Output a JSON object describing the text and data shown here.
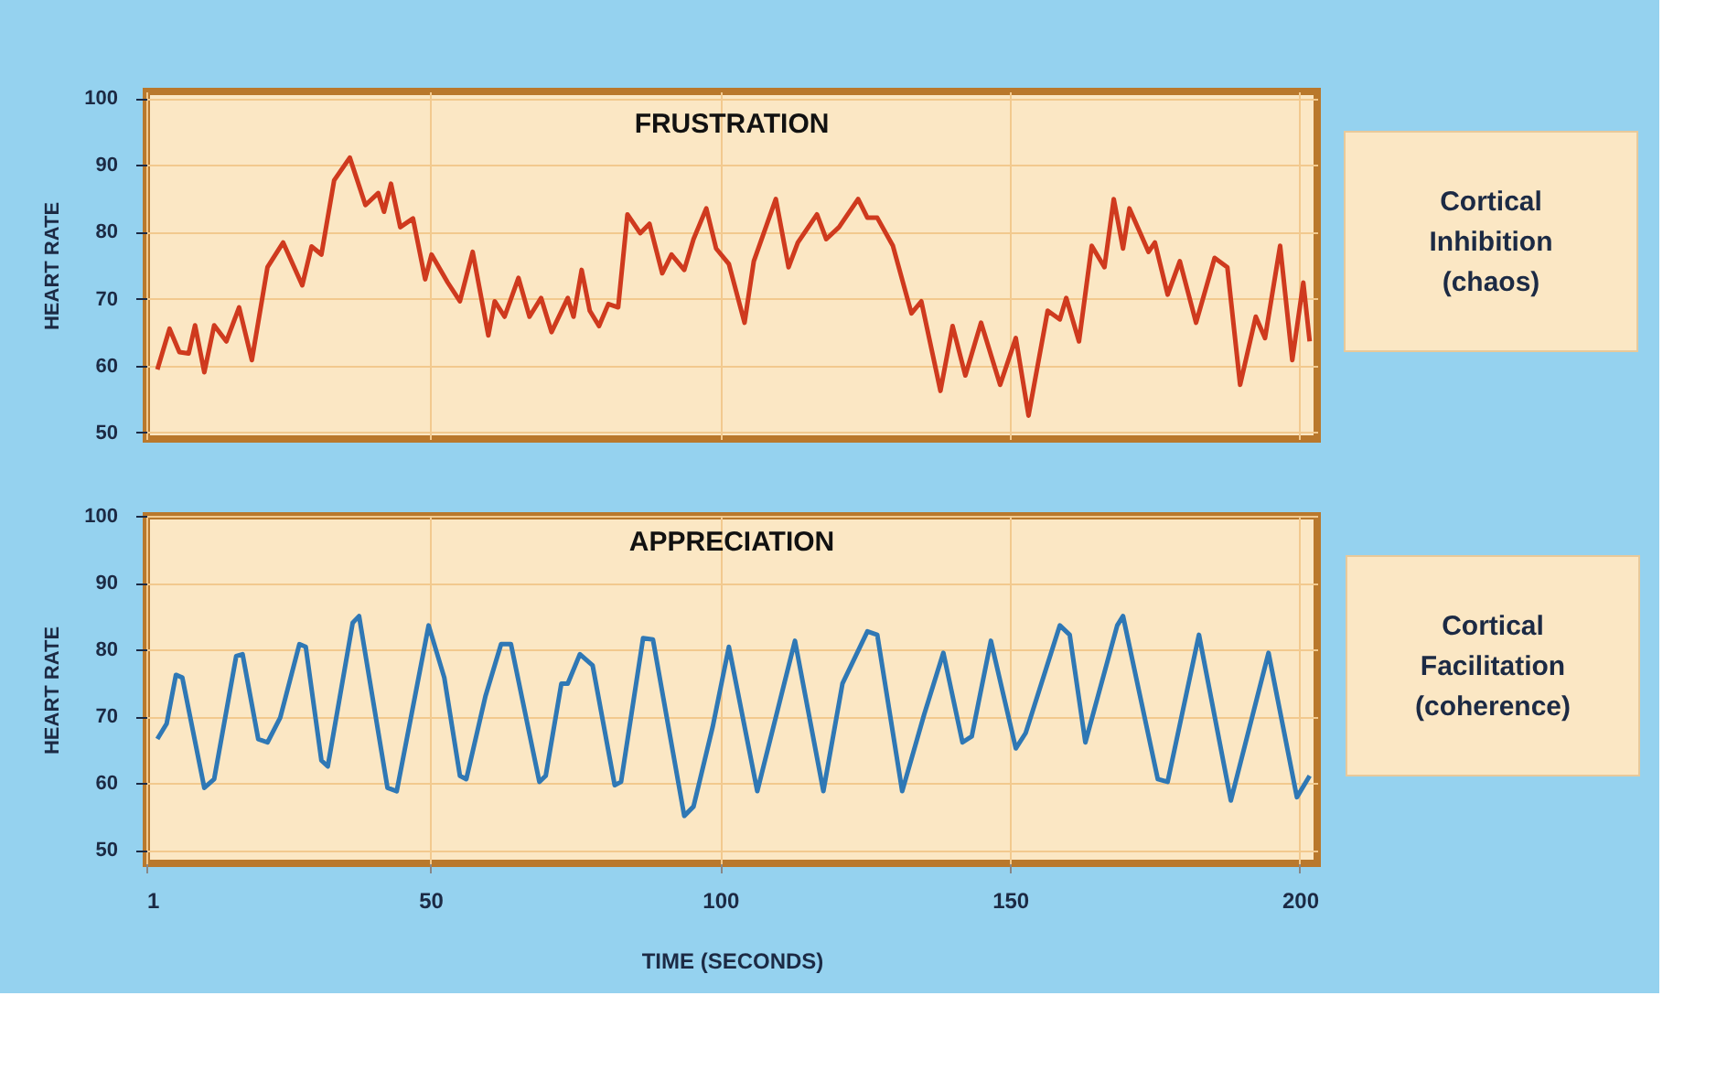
{
  "chart_data": [
    {
      "type": "line",
      "title": "FRUSTRATION",
      "ylabel": "HEART RATE",
      "xlim": [
        1,
        203
      ],
      "xticks": [
        1,
        50,
        100,
        150,
        200
      ],
      "ylim": [
        49,
        101
      ],
      "yticks": [
        50,
        60,
        70,
        80,
        90,
        100
      ],
      "grid": true,
      "tick_labels": "y",
      "x": [
        2.9,
        5,
        6.7,
        8.3,
        9.4,
        11,
        12.7,
        14.8,
        17,
        19.2,
        21.9,
        24.6,
        27.9,
        29.5,
        31.2,
        33.4,
        36.1,
        38.8,
        41,
        42,
        43.2,
        44.8,
        47,
        49.1,
        50.2,
        53,
        55.1,
        57.3,
        60,
        61.1,
        62.8,
        65.2,
        67.1,
        69.1,
        70.9,
        73.7,
        74.7,
        76.1,
        77.5,
        79.1,
        80.7,
        82.4,
        84,
        86.2,
        87.8,
        90,
        91.6,
        93.8,
        95.4,
        97.6,
        99.3,
        101.5,
        104.2,
        105.8,
        109.6,
        111.8,
        113.4,
        116.7,
        118.3,
        120.5,
        123.8,
        125.4,
        127.1,
        129.8,
        133,
        134.7,
        138,
        140.1,
        142.3,
        145,
        148.3,
        151,
        153.2,
        156.5,
        158.6,
        159.7,
        161.9,
        164.1,
        166.3,
        167.9,
        169.5,
        170.6,
        173.9,
        175,
        177.2,
        179.3,
        182.1,
        185.3,
        187.5,
        189.7,
        192.4,
        194,
        196.6,
        198.7,
        200.6,
        201.7
      ],
      "series": [
        {
          "color": "#cf3a1e",
          "values": [
            59.4,
            65.5,
            62,
            61.8,
            66,
            59,
            66,
            63.6,
            68.7,
            60.8,
            74.7,
            78.4,
            72,
            77.8,
            76.6,
            87.7,
            91.1,
            84,
            85.8,
            83,
            87.2,
            80.7,
            82,
            72.9,
            76.6,
            72.4,
            69.6,
            77,
            64.5,
            69.6,
            67.3,
            73.1,
            67.3,
            70.1,
            65,
            70.1,
            67.3,
            74.3,
            68.2,
            65.9,
            69.2,
            68.7,
            82.6,
            79.8,
            81.2,
            73.8,
            76.6,
            74.3,
            78.9,
            83.5,
            77.5,
            75.2,
            66.4,
            75.6,
            84.9,
            74.7,
            78.4,
            82.6,
            78.9,
            80.7,
            84.9,
            82.1,
            82.1,
            77.9,
            67.8,
            69.6,
            56.2,
            65.9,
            58.5,
            66.4,
            57.1,
            64.1,
            52.5,
            68.2,
            66.9,
            70.1,
            63.6,
            77.9,
            74.7,
            84.9,
            77.5,
            83.5,
            77,
            78.4,
            70.6,
            75.6,
            66.4,
            76.1,
            74.7,
            57.1,
            67.3,
            64.1,
            77.9,
            60.8,
            72.4,
            63.6
          ]
        }
      ]
    },
    {
      "type": "other",
      "annotations": [
        "Cortical Inhibition (chaos)"
      ]
    },
    {
      "type": "line",
      "title": "APPRECIATION",
      "xlabel": "TIME (SECONDS)",
      "ylabel": "HEART RATE",
      "xlim": [
        1,
        203
      ],
      "xticks": [
        1,
        50,
        100,
        150,
        200
      ],
      "ylim": [
        48,
        100
      ],
      "yticks": [
        50,
        60,
        70,
        80,
        90,
        100
      ],
      "grid": true,
      "x": [
        2.9,
        4.5,
        6.1,
        7.2,
        11,
        12.7,
        16.5,
        17.6,
        20.3,
        21.9,
        24.1,
        27.4,
        28.5,
        31.2,
        32.3,
        36.6,
        37.7,
        42.6,
        44.2,
        49.7,
        52.4,
        55.1,
        56.2,
        59.5,
        62.2,
        63.9,
        68.8,
        69.9,
        72.6,
        73.7,
        75.8,
        78,
        81.8,
        82.9,
        86.7,
        88.4,
        93.8,
        95.4,
        98.7,
        101.5,
        106.4,
        112.9,
        117.8,
        121.1,
        125.4,
        127.1,
        131.4,
        135.2,
        138.5,
        141.8,
        143.4,
        146.7,
        151,
        152.7,
        158.6,
        160.3,
        163,
        168.5,
        169.5,
        175.5,
        177.2,
        182.6,
        188.1,
        194.6,
        199.5,
        201.7
      ],
      "series": [
        {
          "color": "#2f78b5",
          "values": [
            66.6,
            68.9,
            76.2,
            75.8,
            59.3,
            60.6,
            79,
            79.3,
            66.6,
            66.1,
            69.8,
            80.8,
            80.4,
            63.4,
            62.5,
            84,
            85,
            59.3,
            58.8,
            83.6,
            75.8,
            61.1,
            60.6,
            73,
            80.8,
            80.8,
            60.2,
            61.1,
            74.9,
            74.9,
            79.3,
            77.6,
            59.7,
            60.2,
            81.7,
            81.5,
            55.1,
            56.5,
            68.4,
            80.4,
            58.8,
            81.3,
            58.8,
            74.9,
            82.7,
            82.2,
            58.8,
            70.3,
            79.5,
            66.1,
            67,
            81.3,
            65.2,
            67.5,
            83.6,
            82.2,
            66.1,
            83.6,
            85,
            60.6,
            60.2,
            82.2,
            57.4,
            79.5,
            57.9,
            61.1
          ]
        }
      ]
    },
    {
      "type": "other",
      "annotations": [
        "Cortical Facilitation (coherence)"
      ]
    }
  ]
}
